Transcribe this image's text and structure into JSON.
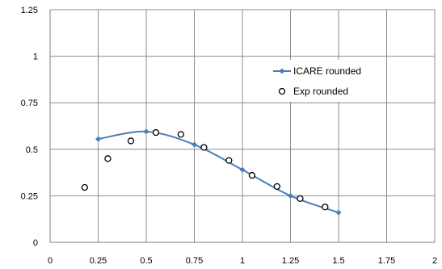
{
  "chart_data": {
    "type": "scatter",
    "title": "",
    "xlabel": "",
    "ylabel": "",
    "xlim": [
      0,
      2
    ],
    "ylim": [
      0,
      1.25
    ],
    "x_ticks": [
      0,
      0.25,
      0.5,
      0.75,
      1,
      1.25,
      1.5,
      1.75,
      2
    ],
    "x_tick_labels": [
      "0",
      "0.25",
      "0.5",
      "0.75",
      "1",
      "1.25",
      "1.5",
      "1.75",
      "2"
    ],
    "y_ticks": [
      0,
      0.25,
      0.5,
      0.75,
      1,
      1.25
    ],
    "y_tick_labels": [
      "0",
      "0.25",
      "0.5",
      "0.75",
      "1",
      "1.25"
    ],
    "grid": true,
    "legend_position": "right",
    "series": [
      {
        "name": "ICARE rounded",
        "kind": "line-markers",
        "color": "#4a7ebb",
        "marker": "diamond",
        "x": [
          0.25,
          0.5,
          0.75,
          1.0,
          1.25,
          1.5
        ],
        "y": [
          0.555,
          0.595,
          0.525,
          0.39,
          0.25,
          0.16
        ]
      },
      {
        "name": "Exp rounded",
        "kind": "markers",
        "color": "#000000",
        "marker": "open-circle",
        "x": [
          0.18,
          0.3,
          0.42,
          0.55,
          0.68,
          0.8,
          0.93,
          1.05,
          1.18,
          1.3,
          1.43
        ],
        "y": [
          0.295,
          0.45,
          0.545,
          0.59,
          0.58,
          0.51,
          0.44,
          0.36,
          0.3,
          0.235,
          0.19
        ]
      }
    ]
  }
}
